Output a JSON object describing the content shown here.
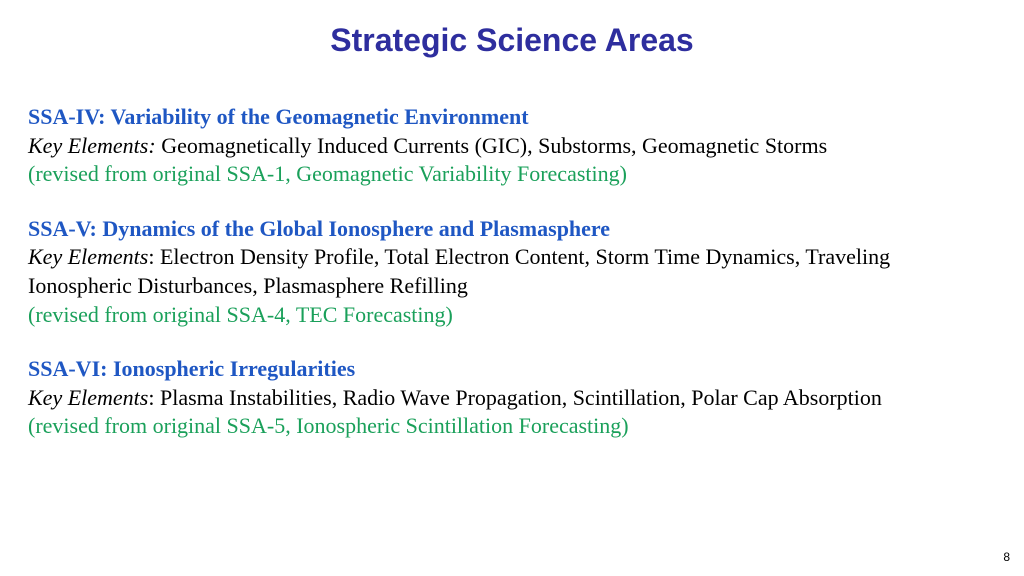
{
  "title": "Strategic Science Areas",
  "colors": {
    "title": "#2e2e9e",
    "heading": "#1f57c3",
    "body": "#000000",
    "revised": "#1aa05a",
    "background": "#ffffff"
  },
  "typography": {
    "title_font": "Arial",
    "title_size_pt": 32,
    "title_weight": "bold",
    "body_font": "Times New Roman",
    "body_size_pt": 22
  },
  "key_elements_label": "Key Elements",
  "sections": [
    {
      "heading": "SSA-IV: Variability of the Geomagnetic Environment",
      "key_elements": "Geomagnetically Induced Currents (GIC), Substorms, Geomagnetic Storms",
      "revised": "(revised from original SSA-1, Geomagnetic Variability Forecasting)"
    },
    {
      "heading": "SSA-V: Dynamics of the Global Ionosphere and Plasmasphere",
      "key_elements": "Electron Density Profile, Total Electron Content, Storm Time Dynamics, Traveling Ionospheric Disturbances, Plasmasphere Refilling",
      "revised": "(revised from original SSA-4, TEC Forecasting)"
    },
    {
      "heading": "SSA-VI: Ionospheric Irregularities",
      "key_elements": "Plasma Instabilities, Radio Wave Propagation, Scintillation, Polar Cap Absorption",
      "revised": "(revised from original SSA-5, Ionospheric Scintillation Forecasting)"
    }
  ],
  "page_number": "8"
}
